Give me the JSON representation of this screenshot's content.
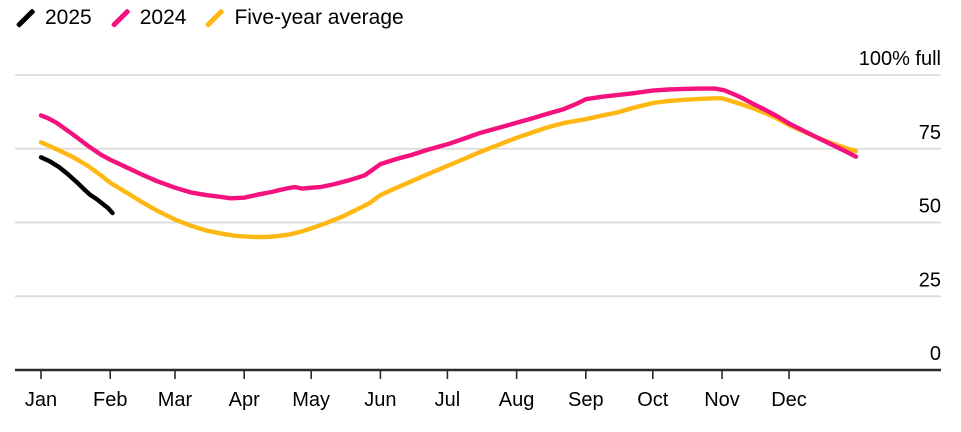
{
  "legend": {
    "items": [
      {
        "label": "2025",
        "color": "#000000"
      },
      {
        "label": "2024",
        "color": "#F5127E"
      },
      {
        "label": "Five-year average",
        "color": "#FFB713"
      }
    ]
  },
  "colors": {
    "background": "#FFFFFF",
    "grid": "#DBDBDB",
    "axis": "#2B2B2B",
    "text": "#000000",
    "series_2025": "#000000",
    "series_2024": "#F5127E",
    "series_avg": "#FFB713"
  },
  "chart_data": {
    "type": "line",
    "title": "",
    "unit": "% full",
    "x_axis": {
      "months": [
        {
          "label": "Jan",
          "day": 1
        },
        {
          "label": "Feb",
          "day": 32
        },
        {
          "label": "Mar",
          "day": 61
        },
        {
          "label": "Apr",
          "day": 92
        },
        {
          "label": "May",
          "day": 122
        },
        {
          "label": "Jun",
          "day": 153
        },
        {
          "label": "Jul",
          "day": 183
        },
        {
          "label": "Aug",
          "day": 214
        },
        {
          "label": "Sep",
          "day": 245
        },
        {
          "label": "Oct",
          "day": 275
        },
        {
          "label": "Nov",
          "day": 306
        },
        {
          "label": "Dec",
          "day": 336
        }
      ],
      "range_days": [
        1,
        366
      ]
    },
    "y_axis": {
      "range": [
        0,
        100
      ],
      "ticks": [
        {
          "value": 100,
          "label": "100% full"
        },
        {
          "value": 75,
          "label": "75"
        },
        {
          "value": 50,
          "label": "50"
        },
        {
          "value": 25,
          "label": "25"
        },
        {
          "value": 0,
          "label": "0"
        }
      ]
    },
    "series": [
      {
        "name": "2025",
        "color": "#000000",
        "points": [
          [
            1,
            72.1
          ],
          [
            5,
            70.7
          ],
          [
            9,
            68.8
          ],
          [
            13,
            66.4
          ],
          [
            17,
            63.7
          ],
          [
            20,
            61.5
          ],
          [
            23,
            59.4
          ],
          [
            26,
            57.9
          ],
          [
            29,
            56.1
          ],
          [
            31,
            54.9
          ],
          [
            33,
            53.2
          ]
        ]
      },
      {
        "name": "2024",
        "color": "#F5127E",
        "points": [
          [
            1,
            86.3
          ],
          [
            4,
            85.4
          ],
          [
            8,
            83.8
          ],
          [
            15,
            80.0
          ],
          [
            22,
            76.0
          ],
          [
            28,
            72.9
          ],
          [
            32,
            71.3
          ],
          [
            39,
            68.8
          ],
          [
            46,
            66.3
          ],
          [
            53,
            64.0
          ],
          [
            61,
            61.8
          ],
          [
            68,
            60.2
          ],
          [
            75,
            59.3
          ],
          [
            82,
            58.6
          ],
          [
            86,
            58.2
          ],
          [
            92,
            58.4
          ],
          [
            99,
            59.6
          ],
          [
            104,
            60.3
          ],
          [
            108,
            61.0
          ],
          [
            112,
            61.7
          ],
          [
            115,
            62.0
          ],
          [
            118,
            61.5
          ],
          [
            122,
            61.8
          ],
          [
            126,
            62.0
          ],
          [
            132,
            62.9
          ],
          [
            139,
            64.3
          ],
          [
            146,
            66.0
          ],
          [
            153,
            69.8
          ],
          [
            160,
            71.5
          ],
          [
            167,
            72.9
          ],
          [
            174,
            74.6
          ],
          [
            183,
            76.5
          ],
          [
            190,
            78.3
          ],
          [
            197,
            80.2
          ],
          [
            204,
            81.7
          ],
          [
            214,
            83.8
          ],
          [
            221,
            85.3
          ],
          [
            228,
            86.9
          ],
          [
            235,
            88.4
          ],
          [
            241,
            90.3
          ],
          [
            245,
            91.8
          ],
          [
            252,
            92.6
          ],
          [
            259,
            93.2
          ],
          [
            266,
            93.8
          ],
          [
            275,
            94.7
          ],
          [
            282,
            95.1
          ],
          [
            289,
            95.3
          ],
          [
            296,
            95.4
          ],
          [
            303,
            95.4
          ],
          [
            307,
            94.8
          ],
          [
            311,
            93.6
          ],
          [
            315,
            92.2
          ],
          [
            320,
            90.2
          ],
          [
            325,
            88.3
          ],
          [
            330,
            86.3
          ],
          [
            336,
            83.6
          ],
          [
            342,
            81.3
          ],
          [
            348,
            79.0
          ],
          [
            354,
            76.8
          ],
          [
            360,
            74.6
          ],
          [
            366,
            72.3
          ]
        ]
      },
      {
        "name": "Five-year average",
        "color": "#FFB713",
        "points": [
          [
            1,
            77.2
          ],
          [
            8,
            74.8
          ],
          [
            15,
            72.3
          ],
          [
            22,
            69.2
          ],
          [
            28,
            65.9
          ],
          [
            32,
            63.5
          ],
          [
            39,
            60.3
          ],
          [
            46,
            57.0
          ],
          [
            53,
            54.0
          ],
          [
            61,
            51.0
          ],
          [
            68,
            48.9
          ],
          [
            75,
            47.3
          ],
          [
            82,
            46.2
          ],
          [
            88,
            45.5
          ],
          [
            92,
            45.3
          ],
          [
            97,
            45.1
          ],
          [
            102,
            45.1
          ],
          [
            107,
            45.4
          ],
          [
            112,
            45.9
          ],
          [
            117,
            46.8
          ],
          [
            122,
            48.0
          ],
          [
            129,
            49.9
          ],
          [
            136,
            52.0
          ],
          [
            143,
            54.6
          ],
          [
            148,
            56.5
          ],
          [
            153,
            59.3
          ],
          [
            160,
            61.7
          ],
          [
            167,
            64.0
          ],
          [
            174,
            66.3
          ],
          [
            183,
            69.2
          ],
          [
            190,
            71.4
          ],
          [
            197,
            73.7
          ],
          [
            204,
            75.8
          ],
          [
            214,
            78.7
          ],
          [
            221,
            80.5
          ],
          [
            228,
            82.3
          ],
          [
            235,
            83.7
          ],
          [
            245,
            85.0
          ],
          [
            252,
            86.2
          ],
          [
            259,
            87.3
          ],
          [
            266,
            88.8
          ],
          [
            275,
            90.5
          ],
          [
            282,
            91.2
          ],
          [
            289,
            91.6
          ],
          [
            296,
            91.9
          ],
          [
            302,
            92.1
          ],
          [
            306,
            92.1
          ],
          [
            311,
            91.0
          ],
          [
            315,
            90.0
          ],
          [
            320,
            88.7
          ],
          [
            325,
            87.2
          ],
          [
            330,
            85.5
          ],
          [
            336,
            83.0
          ],
          [
            342,
            81.0
          ],
          [
            348,
            79.0
          ],
          [
            354,
            77.2
          ],
          [
            360,
            75.6
          ],
          [
            366,
            74.2
          ]
        ]
      }
    ]
  }
}
